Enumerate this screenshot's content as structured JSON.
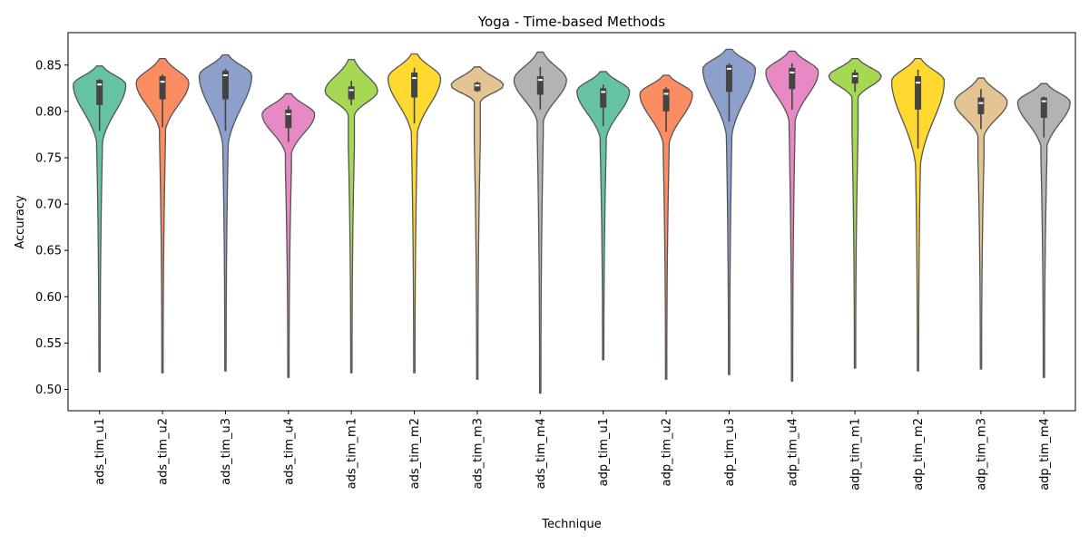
{
  "chart_data": {
    "type": "violin",
    "title": "Yoga - Time-based Methods",
    "xlabel": "Technique",
    "ylabel": "Accuracy",
    "ylim": [
      0.477,
      0.885
    ],
    "yticks": [
      "0.50",
      "0.55",
      "0.60",
      "0.65",
      "0.70",
      "0.75",
      "0.80",
      "0.85"
    ],
    "grid": false,
    "palette": [
      "#66c2a5",
      "#fc8d62",
      "#8da0cb",
      "#e78ac3",
      "#a6d854",
      "#ffd92f",
      "#e5c494",
      "#b3b3b3"
    ],
    "categories": [
      "ads_tim_u1",
      "ads_tim_u2",
      "ads_tim_u3",
      "ads_tim_u4",
      "ads_tim_m1",
      "ads_tim_m2",
      "ads_tim_m3",
      "ads_tim_m4",
      "adp_tim_u1",
      "adp_tim_u2",
      "adp_tim_u3",
      "adp_tim_u4",
      "adp_tim_m1",
      "adp_tim_m2",
      "adp_tim_m3",
      "adp_tim_m4"
    ],
    "distributions": [
      {
        "min": 0.519,
        "max": 0.849,
        "q1": 0.807,
        "median": 0.829,
        "q3": 0.834,
        "whisker_low": 0.779,
        "whisker_high": 0.835,
        "mode": 0.829
      },
      {
        "min": 0.518,
        "max": 0.857,
        "q1": 0.813,
        "median": 0.832,
        "q3": 0.838,
        "whisker_low": 0.783,
        "whisker_high": 0.84,
        "mode": 0.831
      },
      {
        "min": 0.52,
        "max": 0.861,
        "q1": 0.813,
        "median": 0.839,
        "q3": 0.844,
        "whisker_low": 0.779,
        "whisker_high": 0.846,
        "mode": 0.839
      },
      {
        "min": 0.513,
        "max": 0.819,
        "q1": 0.782,
        "median": 0.797,
        "q3": 0.802,
        "whisker_low": 0.767,
        "whisker_high": 0.806,
        "mode": 0.797
      },
      {
        "min": 0.518,
        "max": 0.856,
        "q1": 0.813,
        "median": 0.823,
        "q3": 0.827,
        "whisker_low": 0.807,
        "whisker_high": 0.833,
        "mode": 0.822
      },
      {
        "min": 0.518,
        "max": 0.862,
        "q1": 0.815,
        "median": 0.836,
        "q3": 0.842,
        "whisker_low": 0.787,
        "whisker_high": 0.847,
        "mode": 0.836
      },
      {
        "min": 0.511,
        "max": 0.848,
        "q1": 0.822,
        "median": 0.828,
        "q3": 0.831,
        "whisker_low": 0.821,
        "whisker_high": 0.832,
        "mode": 0.828
      },
      {
        "min": 0.496,
        "max": 0.864,
        "q1": 0.818,
        "median": 0.834,
        "q3": 0.838,
        "whisker_low": 0.802,
        "whisker_high": 0.848,
        "mode": 0.834
      },
      {
        "min": 0.532,
        "max": 0.843,
        "q1": 0.804,
        "median": 0.821,
        "q3": 0.825,
        "whisker_low": 0.784,
        "whisker_high": 0.829,
        "mode": 0.822
      },
      {
        "min": 0.511,
        "max": 0.839,
        "q1": 0.8,
        "median": 0.819,
        "q3": 0.824,
        "whisker_low": 0.778,
        "whisker_high": 0.826,
        "mode": 0.819
      },
      {
        "min": 0.516,
        "max": 0.867,
        "q1": 0.821,
        "median": 0.846,
        "q3": 0.85,
        "whisker_low": 0.789,
        "whisker_high": 0.852,
        "mode": 0.846
      },
      {
        "min": 0.509,
        "max": 0.865,
        "q1": 0.824,
        "median": 0.842,
        "q3": 0.847,
        "whisker_low": 0.802,
        "whisker_high": 0.852,
        "mode": 0.843
      },
      {
        "min": 0.523,
        "max": 0.857,
        "q1": 0.83,
        "median": 0.838,
        "q3": 0.842,
        "whisker_low": 0.821,
        "whisker_high": 0.845,
        "mode": 0.838
      },
      {
        "min": 0.52,
        "max": 0.857,
        "q1": 0.802,
        "median": 0.831,
        "q3": 0.838,
        "whisker_low": 0.76,
        "whisker_high": 0.845,
        "mode": 0.833
      },
      {
        "min": 0.522,
        "max": 0.836,
        "q1": 0.797,
        "median": 0.809,
        "q3": 0.815,
        "whisker_low": 0.781,
        "whisker_high": 0.824,
        "mode": 0.81
      },
      {
        "min": 0.513,
        "max": 0.83,
        "q1": 0.793,
        "median": 0.811,
        "q3": 0.815,
        "whisker_low": 0.772,
        "whisker_high": 0.816,
        "mode": 0.81
      }
    ]
  }
}
